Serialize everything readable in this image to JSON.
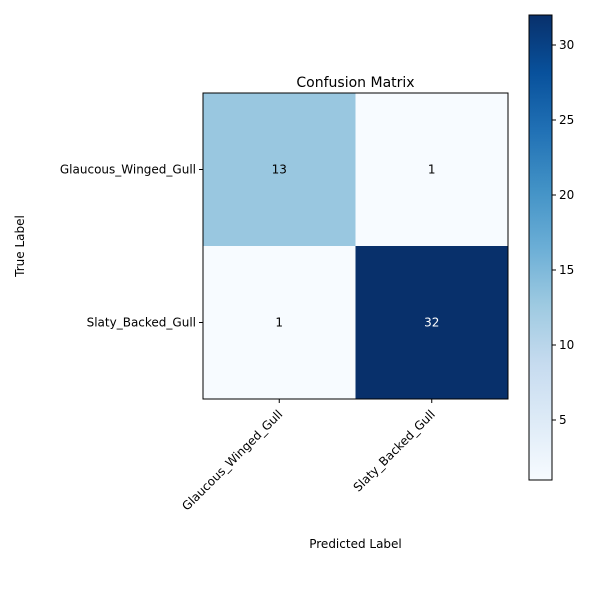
{
  "chart_data": {
    "type": "heatmap",
    "title": "Confusion Matrix",
    "xlabel": "Predicted Label",
    "ylabel": "True Label",
    "x_categories": [
      "Glaucous_Winged_Gull",
      "Slaty_Backed_Gull"
    ],
    "y_categories": [
      "Glaucous_Winged_Gull",
      "Slaty_Backed_Gull"
    ],
    "matrix": [
      [
        13,
        1
      ],
      [
        1,
        32
      ]
    ],
    "colormap": "Blues",
    "color_low": "#f7fbff",
    "color_high": "#08306b",
    "colorbar": {
      "min": 1,
      "max": 32,
      "ticks": [
        5,
        10,
        15,
        20,
        25,
        30
      ]
    },
    "grid": false,
    "text_color_dark": "#000000",
    "text_color_light": "#ffffff"
  }
}
